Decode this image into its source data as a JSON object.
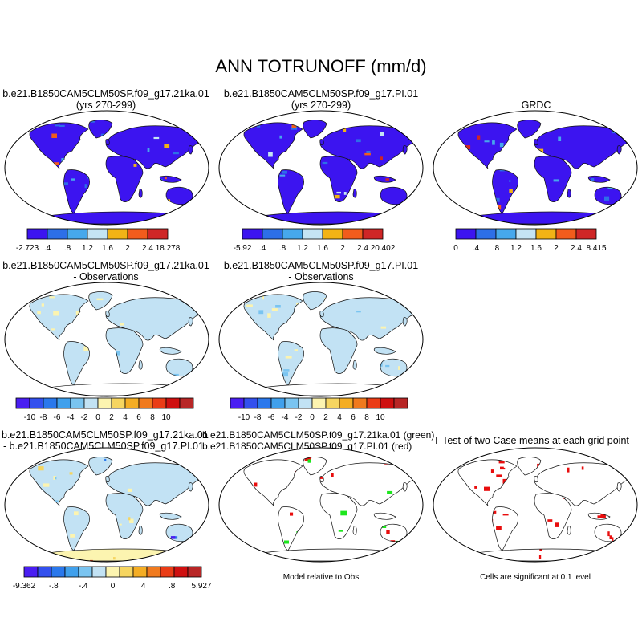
{
  "figure": {
    "title": "ANN TOTRUNOFF (mm/d)",
    "notes": {
      "model_relative": "Model relative to Obs",
      "significance": "Cells are significant at 0.1 level"
    }
  },
  "chart_data": [
    {
      "type": "map",
      "id": "case1",
      "title": [
        "b.e21.B1850CAM5CLM50SP.f09_g17.21ka.01",
        "(yrs 270-299)"
      ],
      "colorbar": {
        "colors": [
          "#3c14f0",
          "#2d6fe8",
          "#46a8ec",
          "#c4e4f4",
          "#f2b316",
          "#f25c1c",
          "#cf2626"
        ],
        "labels": [
          "-2.723",
          ".4",
          ".8",
          "1.2",
          "1.6",
          "2",
          "2.4",
          "18.278"
        ]
      }
    },
    {
      "type": "map",
      "id": "case2",
      "title": [
        "b.e21.B1850CAM5CLM50SP.f09_g17.PI.01",
        "(yrs 270-299)"
      ],
      "colorbar": {
        "colors": [
          "#3c14f0",
          "#2d6fe8",
          "#46a8ec",
          "#c4e4f4",
          "#f2b316",
          "#f25c1c",
          "#cf2626"
        ],
        "labels": [
          "-5.92",
          ".4",
          ".8",
          "1.2",
          "1.6",
          "2",
          "2.4",
          "20.402"
        ]
      }
    },
    {
      "type": "map",
      "id": "obs",
      "title": [
        "GRDC"
      ],
      "colorbar": {
        "colors": [
          "#3c14f0",
          "#2d6fe8",
          "#46a8ec",
          "#c4e4f4",
          "#f2b316",
          "#f25c1c",
          "#cf2626"
        ],
        "labels": [
          "0",
          ".4",
          ".8",
          "1.2",
          "1.6",
          "2",
          "2.4",
          "8.415"
        ]
      }
    },
    {
      "type": "map",
      "id": "diff1",
      "title": [
        "b.e21.B1850CAM5CLM50SP.f09_g17.21ka.01",
        "- Observations"
      ],
      "colorbar": {
        "colors": [
          "#4a1ef2",
          "#3350ee",
          "#2a78ec",
          "#40a0ec",
          "#7ac4f0",
          "#c2e2f4",
          "#fcf4b0",
          "#f6d560",
          "#f4ad24",
          "#f07a1e",
          "#ea3c16",
          "#cf1010",
          "#b82626"
        ],
        "labels": [
          "-10",
          "-8",
          "-6",
          "-4",
          "-2",
          "0",
          "2",
          "4",
          "6",
          "8",
          "10"
        ]
      }
    },
    {
      "type": "map",
      "id": "diff2",
      "title": [
        "b.e21.B1850CAM5CLM50SP.f09_g17.PI.01",
        "- Observations"
      ],
      "colorbar": {
        "colors": [
          "#4a1ef2",
          "#3350ee",
          "#2a78ec",
          "#40a0ec",
          "#7ac4f0",
          "#c2e2f4",
          "#fcf4b0",
          "#f6d560",
          "#f4ad24",
          "#f07a1e",
          "#ea3c16",
          "#cf1010",
          "#b82626"
        ],
        "labels": [
          "-10",
          "-8",
          "-6",
          "-4",
          "-2",
          "0",
          "2",
          "4",
          "6",
          "8",
          "10"
        ]
      }
    },
    {
      "type": "map",
      "id": "casediff",
      "title": [
        "b.e21.B1850CAM5CLM50SP.f09_g17.21ka.01",
        "- b.e21.B1850CAM5CLM50SP.f09_g17.PI.01"
      ],
      "colorbar": {
        "colors": [
          "#4a1ef2",
          "#3350ee",
          "#2a78ec",
          "#40a0ec",
          "#7ac4f0",
          "#c2e2f4",
          "#fcf4b0",
          "#f6d560",
          "#f4ad24",
          "#f07a1e",
          "#ea3c16",
          "#cf1010",
          "#b82626"
        ],
        "labels": [
          "-9.362",
          "-.8",
          "-.4",
          "0",
          ".4",
          ".8",
          "5.927"
        ]
      }
    },
    {
      "type": "map",
      "id": "closest",
      "title": [
        "b.e21.B1850CAM5CLM50SP.f09_g17.21ka.01 (green)",
        "b.e21.B1850CAM5CLM50SP.f09_g17.PI.01 (red)"
      ]
    },
    {
      "type": "map",
      "id": "ttest",
      "title": [
        "T-Test of two Case means at each grid point"
      ]
    }
  ]
}
